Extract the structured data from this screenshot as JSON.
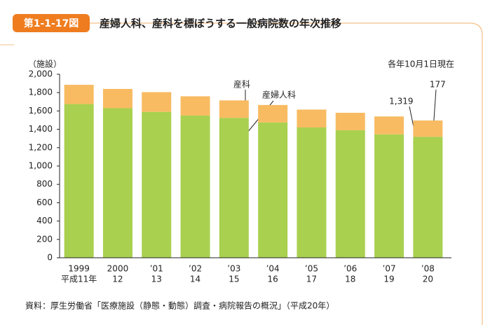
{
  "chart_data": {
    "type": "stacked-bar",
    "figure_number": "第1-1-17図",
    "title": "産婦人科、産科を標ぼうする一般病院数の年次推移",
    "y_unit": "（施設）",
    "note": "各年10月1日現在",
    "source": "資料：厚生労働省「医療施設（静態・動態）調査・病院報告の概況」（平成20年）",
    "categories": [
      "1999",
      "2000",
      "’01",
      "’02",
      "’03",
      "’04",
      "’05",
      "’06",
      "’07",
      "’08"
    ],
    "era_labels": [
      "平成11年",
      "12",
      "13",
      "14",
      "15",
      "16",
      "17",
      "18",
      "19",
      "20"
    ],
    "series": [
      {
        "name": "産婦人科",
        "color": "#a9d04f",
        "values": [
          1675,
          1630,
          1590,
          1550,
          1525,
          1475,
          1420,
          1390,
          1345,
          1319
        ],
        "value_labels": [
          null,
          null,
          null,
          null,
          null,
          null,
          null,
          null,
          null,
          "1,319"
        ]
      },
      {
        "name": "産科",
        "color": "#f8bb62",
        "values": [
          210,
          210,
          215,
          210,
          190,
          190,
          195,
          190,
          195,
          177
        ],
        "value_labels": [
          null,
          null,
          null,
          null,
          null,
          null,
          null,
          null,
          null,
          "177"
        ]
      }
    ],
    "ylim": [
      0,
      2000
    ],
    "yticks": [
      0,
      200,
      400,
      600,
      800,
      {
        "value": 1000,
        "label": "1,000"
      },
      {
        "value": 1200,
        "label": "1,200"
      },
      {
        "value": 1400,
        "label": "1,400"
      },
      {
        "value": 1600,
        "label": "1,600"
      },
      {
        "value": 1800,
        "label": "1,800"
      },
      {
        "value": 2000,
        "label": "2,000"
      }
    ]
  }
}
